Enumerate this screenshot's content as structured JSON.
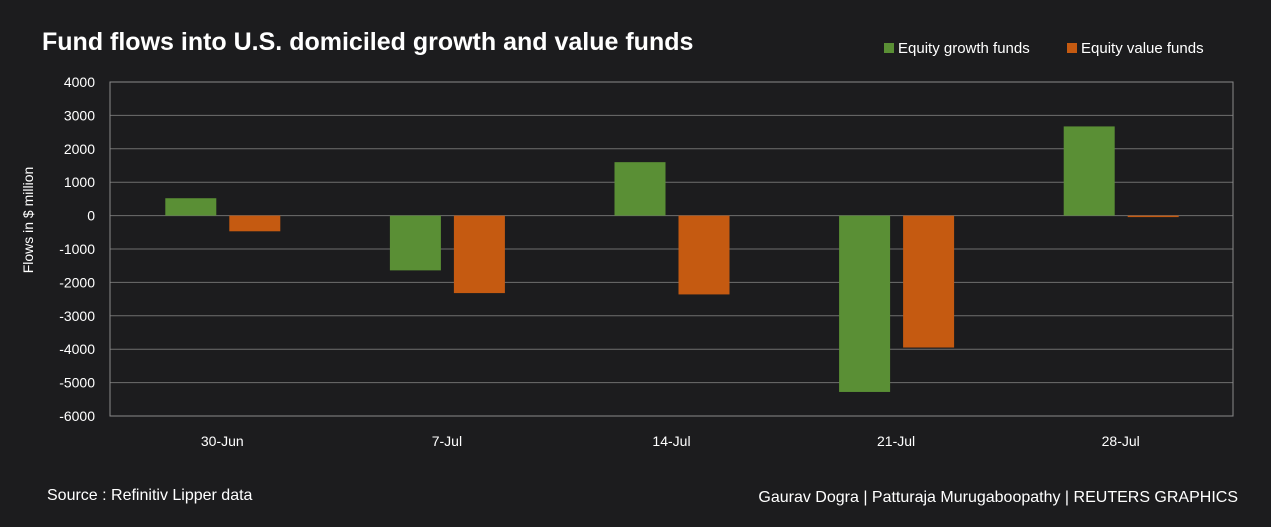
{
  "chart_data": {
    "type": "bar",
    "title": "Fund flows into U.S. domiciled growth and value funds",
    "ylabel": "Flows in $ million",
    "xlabel": "",
    "categories": [
      "30-Jun",
      "7-Jul",
      "14-Jul",
      "21-Jul",
      "28-Jul"
    ],
    "yticks": [
      "4000",
      "3000",
      "2000",
      "1000",
      "0",
      "-1000",
      "-2000",
      "-3000",
      "-4000",
      "-5000",
      "-6000"
    ],
    "ylim": [
      -6000,
      4000
    ],
    "grid": true,
    "legend_position": "top-right",
    "series": [
      {
        "name": "Equity growth funds",
        "color": "#5a8f35",
        "values": [
          520,
          -1640,
          1600,
          -5280,
          2670
        ]
      },
      {
        "name": "Equity value funds",
        "color": "#c55a11",
        "values": [
          -470,
          -2320,
          -2360,
          -3950,
          -40
        ]
      }
    ]
  },
  "footer": {
    "source": "Source : Refinitiv Lipper data",
    "credit": "Gaurav Dogra | Patturaja Murugaboopathy | REUTERS GRAPHICS"
  }
}
